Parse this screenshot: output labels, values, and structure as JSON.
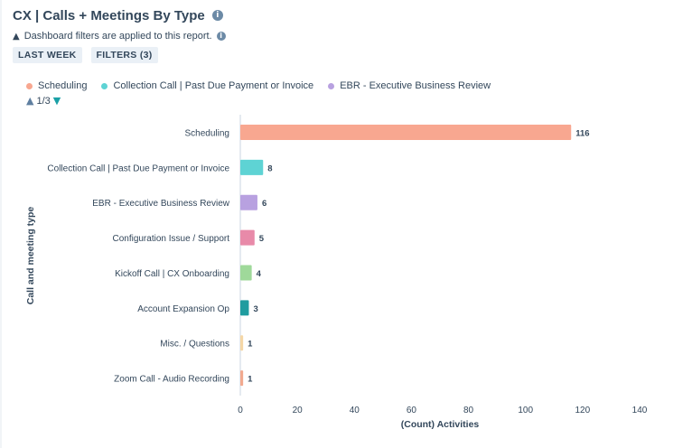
{
  "header": {
    "title": "CX | Calls + Meetings By Type",
    "info_icon": "info-icon"
  },
  "filter_note": {
    "text": "Dashboard filters are applied to this report.",
    "icon": "warning-icon"
  },
  "tags": {
    "date_range": "LAST WEEK",
    "filters": "FILTERS (3)"
  },
  "legend": {
    "items": [
      {
        "label": "Scheduling",
        "color": "#f8a790"
      },
      {
        "label": "Collection Call | Past Due Payment or Invoice",
        "color": "#5ed3d4"
      },
      {
        "label": "EBR - Executive Business Review",
        "color": "#b8a1e0"
      }
    ],
    "pager": "1/3"
  },
  "chart_data": {
    "type": "bar",
    "orientation": "horizontal",
    "categories": [
      "Scheduling",
      "Collection Call | Past Due Payment or Invoice",
      "EBR - Executive Business Review",
      "Configuration Issue / Support",
      "Kickoff Call | CX Onboarding",
      "Account Expansion Op",
      "Misc. / Questions",
      "Zoom Call - Audio Recording"
    ],
    "values": [
      116,
      8,
      6,
      5,
      4,
      3,
      1,
      1
    ],
    "colors": [
      "#f8a790",
      "#5ed3d4",
      "#b8a1e0",
      "#e88aa9",
      "#9fd99a",
      "#1f9c9f",
      "#f5d7a6",
      "#f2a98f"
    ],
    "xlabel": "(Count) Activities",
    "ylabel": "Call and meeting type",
    "xlim": [
      0,
      140
    ],
    "xticks": [
      0,
      20,
      40,
      60,
      80,
      100,
      120,
      140
    ],
    "grid": false
  }
}
